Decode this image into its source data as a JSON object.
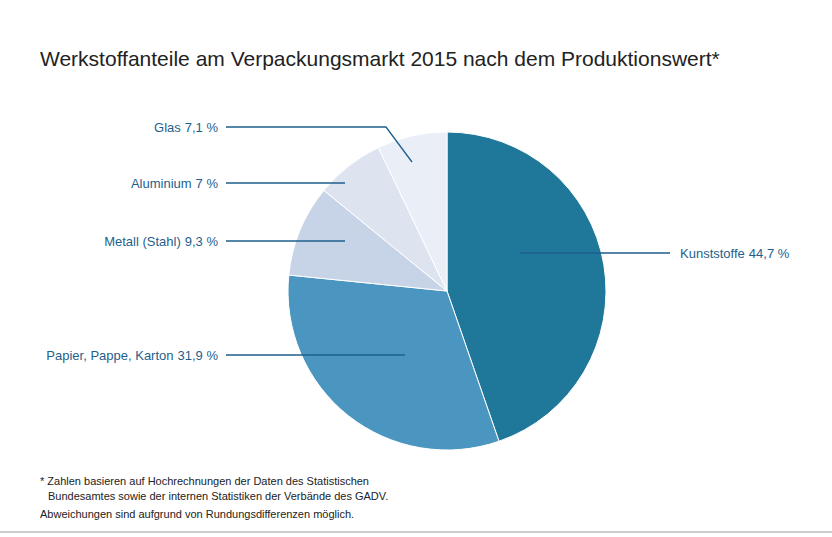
{
  "chart_data": {
    "type": "pie",
    "title": "Werkstoffanteile am Verpackungsmarkt 2015 nach dem Produktionswert*",
    "categories": [
      "Kunststoffe",
      "Papier, Pappe, Karton",
      "Metall (Stahl)",
      "Aluminium",
      "Glas"
    ],
    "values": [
      44.7,
      31.9,
      9.3,
      7,
      7.1
    ],
    "value_labels": [
      "44,7 %",
      "31,9 %",
      "9,3 %",
      "7 %",
      "7,1 %"
    ],
    "colors": [
      "#1f7799",
      "#4b96c0",
      "#c7d4e7",
      "#dde4ef",
      "#e9eef7"
    ],
    "data_labels": true,
    "footnote": [
      "* Zahlen basieren auf Hochrechnungen der Daten des Statistischen",
      "Bundesamtes sowie der internen Statistiken der Verbände des GADV.",
      "Abweichungen sind aufgrund von Rundungsdifferenzen möglich."
    ]
  }
}
